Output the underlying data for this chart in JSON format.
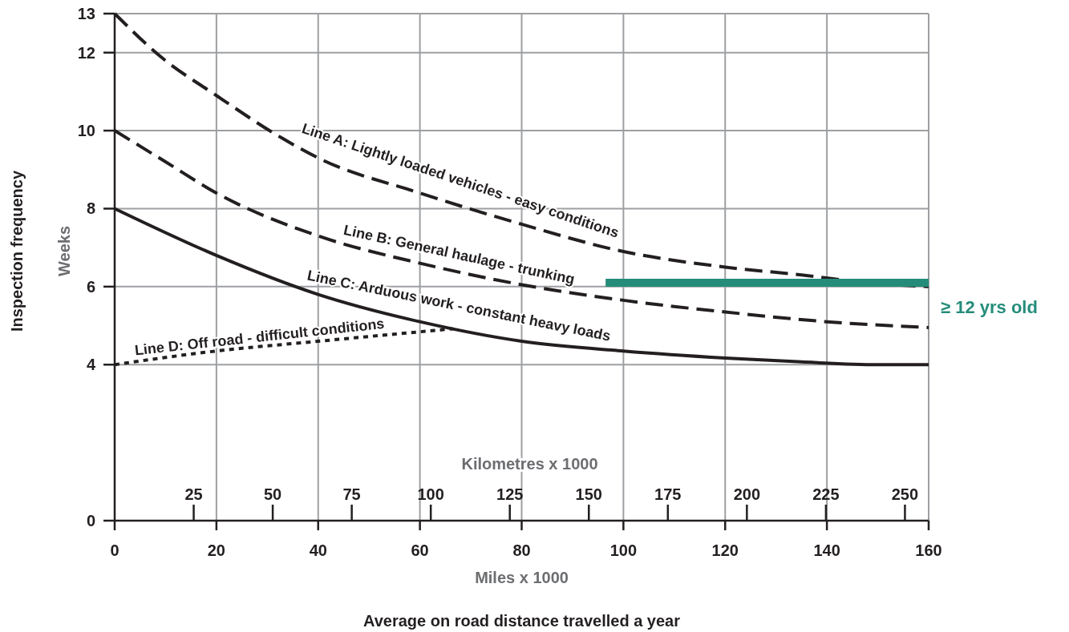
{
  "chart_data": {
    "type": "line",
    "xlabel": "Miles x 1000",
    "ylabel": "Weeks",
    "x2label": "Kilometres x 1000",
    "annotations": [
      "Average on road distance travelled a year",
      "Inspection frequency"
    ],
    "xlim": [
      0,
      160
    ],
    "xticks": [
      0,
      20,
      40,
      60,
      80,
      100,
      120,
      140,
      160
    ],
    "x2lim": [
      0,
      257.5
    ],
    "x2ticks": [
      25,
      50,
      75,
      100,
      125,
      150,
      175,
      200,
      225,
      250
    ],
    "ylim": [
      0,
      13
    ],
    "yticks": [
      0,
      4,
      6,
      8,
      10,
      12,
      13
    ],
    "grid": true,
    "series": [
      {
        "name": "Line A: Lightly loaded vehicles - easy conditions",
        "color": "#231f20",
        "line_style": "dashed",
        "x": [
          0,
          9,
          20,
          33,
          40,
          60,
          80,
          100,
          120,
          135,
          148,
          160
        ],
        "values": [
          13,
          11.9,
          10.9,
          9.8,
          9.3,
          8.4,
          7.6,
          6.9,
          6.5,
          6.3,
          6.1,
          6.0
        ]
      },
      {
        "name": "Line B: General haulage - trunking",
        "color": "#231f20",
        "line_style": "dashed",
        "x": [
          0,
          10,
          20,
          40,
          60,
          80,
          100,
          120,
          140,
          160
        ],
        "values": [
          10,
          9.2,
          8.4,
          7.3,
          6.6,
          6.05,
          5.65,
          5.35,
          5.1,
          4.95
        ]
      },
      {
        "name": "Line C: Arduous work - constant heavy loads",
        "color": "#231f20",
        "line_style": "solid",
        "x": [
          0,
          20,
          40,
          60,
          80,
          100,
          120,
          135,
          150,
          160
        ],
        "values": [
          8,
          6.8,
          5.8,
          5.1,
          4.6,
          4.35,
          4.17,
          4.07,
          4.0,
          4.0
        ]
      },
      {
        "name": "Line D: Off road - difficult conditions",
        "color": "#231f20",
        "line_style": "dotted",
        "x": [
          0,
          20,
          40,
          66.5
        ],
        "values": [
          4,
          4.35,
          4.6,
          4.92
        ]
      },
      {
        "name": "≥ 12 yrs old",
        "color": "#258c7a",
        "line_style": "solid",
        "x": [
          96.5,
          160
        ],
        "values": [
          6.1,
          6.1
        ]
      }
    ]
  }
}
